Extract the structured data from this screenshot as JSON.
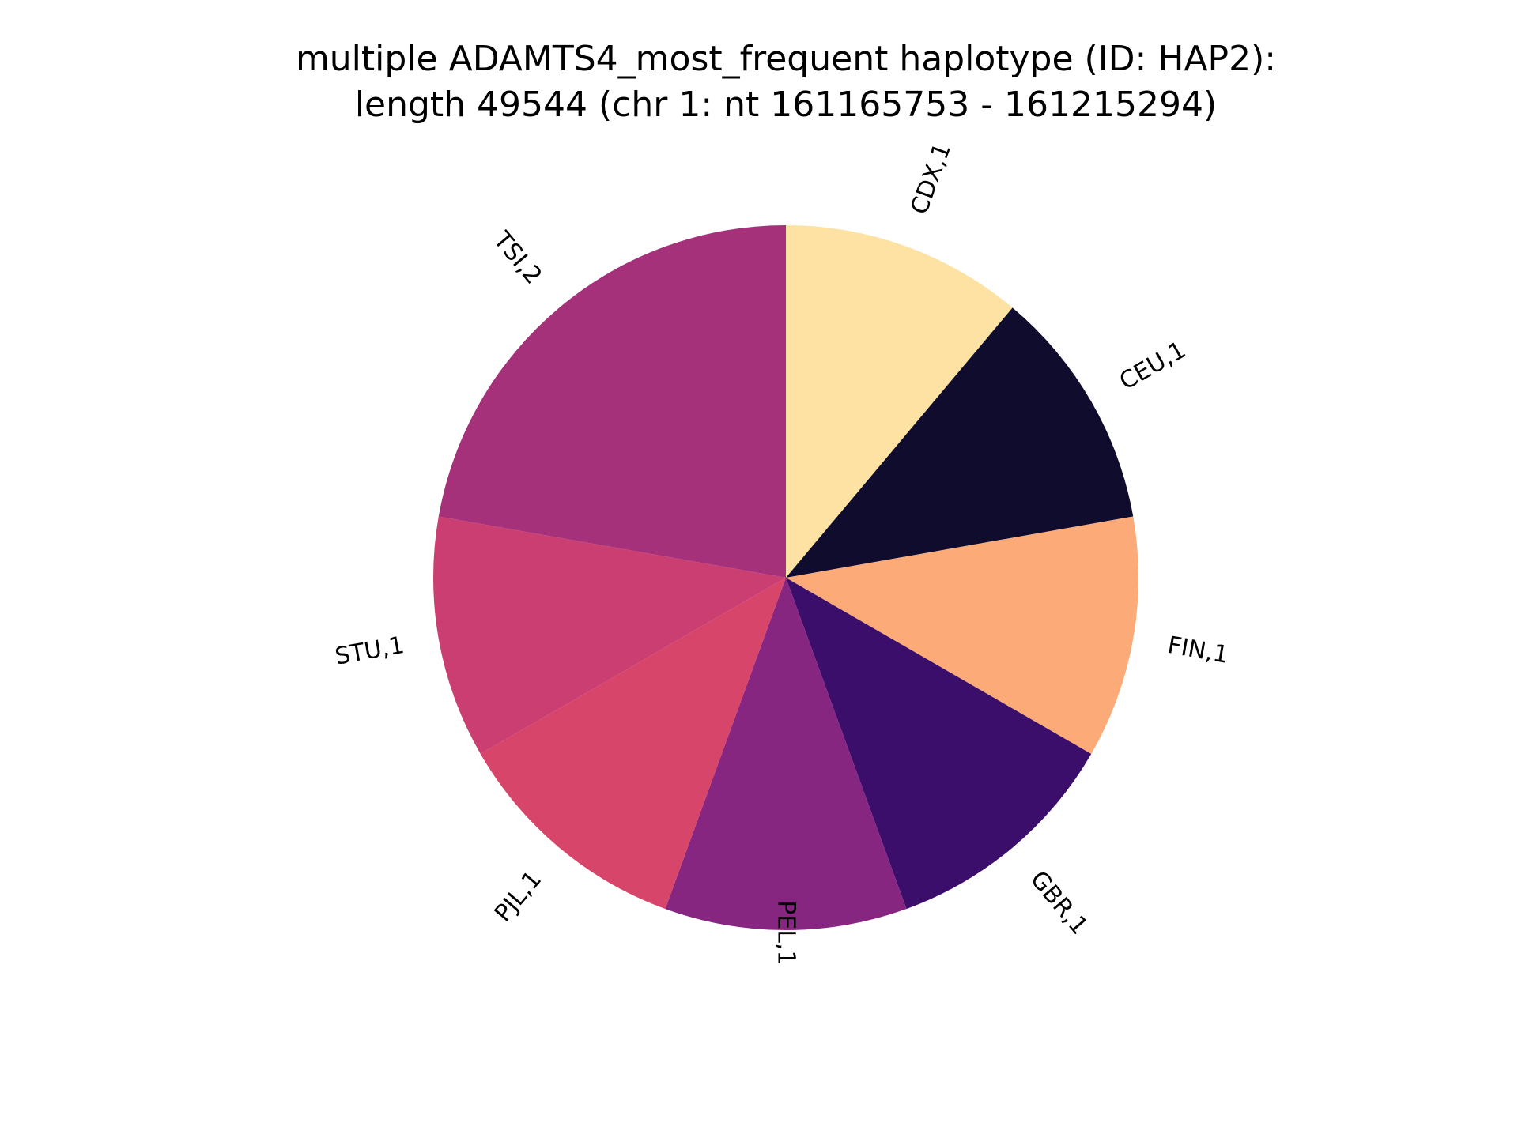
{
  "chart_data": {
    "type": "pie",
    "title_lines": [
      "multiple ADAMTS4_most_frequent haplotype (ID: HAP2):",
      "length 49544 (chr 1: nt 161165753 - 161215294)"
    ],
    "slices": [
      {
        "label": "CDX,1",
        "name": "CDX",
        "value": 1,
        "color": "#fde2a3"
      },
      {
        "label": "CEU,1",
        "name": "CEU",
        "value": 1,
        "color": "#100c2e"
      },
      {
        "label": "FIN,1",
        "name": "FIN",
        "value": 1,
        "color": "#fcab78"
      },
      {
        "label": "GBR,1",
        "name": "GBR",
        "value": 1,
        "color": "#3b0e6c"
      },
      {
        "label": "PEL,1",
        "name": "PEL",
        "value": 1,
        "color": "#872681"
      },
      {
        "label": "PJL,1",
        "name": "PJL",
        "value": 1,
        "color": "#d8456b"
      },
      {
        "label": "STU,1",
        "name": "STU",
        "value": 1,
        "color": "#cb3e71"
      },
      {
        "label": "TSI,2",
        "name": "TSI",
        "value": 2,
        "color": "#a5317b"
      }
    ],
    "start_angle": "12 o'clock",
    "direction": "clockwise",
    "legend": "none",
    "labels_rotated": true
  }
}
